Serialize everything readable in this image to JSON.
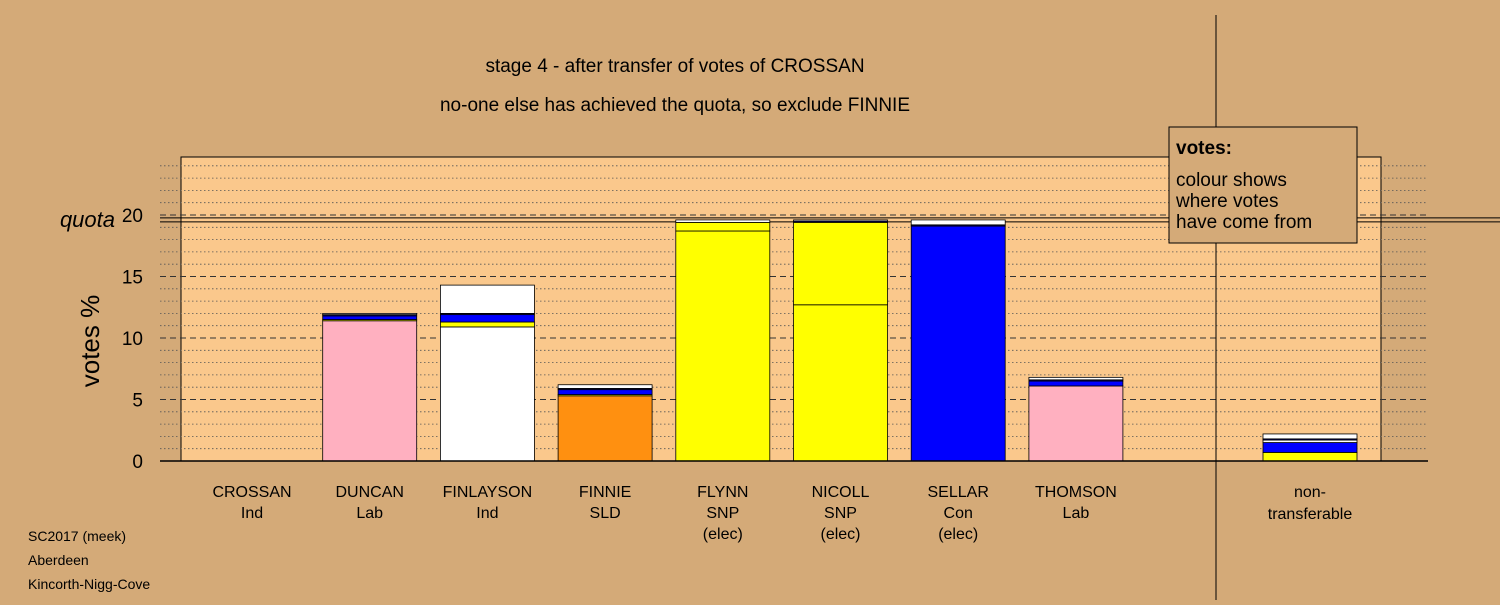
{
  "chart_data": {
    "type": "bar",
    "stacked": true,
    "title": "stage 4 - after transfer of votes of CROSSAN",
    "subtitle": "no-one else has achieved the quota, so exclude FINNIE",
    "ylabel": "votes %",
    "ylim": [
      0,
      25
    ],
    "yticks": [
      0,
      5,
      10,
      15,
      20
    ],
    "quota": 19.6,
    "quota_label": "quota",
    "grid": true,
    "colors": {
      "background": "#d4aa78",
      "plot_bg": "#fac88c",
      "white": "#ffffff",
      "yellow": "#ffff00",
      "blue": "#0000ff",
      "navy": "#000080",
      "pink": "#ffb0c0",
      "orange": "#ff9010"
    },
    "legend": {
      "position": "top-right",
      "title": "votes:",
      "lines": [
        "colour shows",
        "where votes",
        "have come from"
      ]
    },
    "candidates": [
      {
        "name": "CROSSAN",
        "party": "Ind",
        "status": "",
        "segments": []
      },
      {
        "name": "DUNCAN",
        "party": "Lab",
        "status": "",
        "segments": [
          {
            "color": "pink",
            "value": 11.4
          },
          {
            "color": "yellow",
            "value": 0.1
          },
          {
            "color": "blue",
            "value": 0.3
          },
          {
            "color": "navy",
            "value": 0.1
          },
          {
            "color": "white",
            "value": 0.1
          }
        ]
      },
      {
        "name": "FINLAYSON",
        "party": "Ind",
        "status": "",
        "segments": [
          {
            "color": "white",
            "value": 10.9
          },
          {
            "color": "yellow",
            "value": 0.4
          },
          {
            "color": "blue",
            "value": 0.6
          },
          {
            "color": "navy",
            "value": 0.1
          },
          {
            "color": "white",
            "value": 2.3
          }
        ]
      },
      {
        "name": "FINNIE",
        "party": "SLD",
        "status": "",
        "segments": [
          {
            "color": "orange",
            "value": 5.3
          },
          {
            "color": "yellow",
            "value": 0.1
          },
          {
            "color": "blue",
            "value": 0.4
          },
          {
            "color": "navy",
            "value": 0.1
          },
          {
            "color": "white",
            "value": 0.3
          }
        ]
      },
      {
        "name": "FLYNN",
        "party": "SNP",
        "status": "(elec)",
        "segments": [
          {
            "color": "yellow",
            "value": 18.7
          },
          {
            "color": "yellow",
            "value": 0.7
          },
          {
            "color": "white",
            "value": 0.2
          }
        ]
      },
      {
        "name": "NICOLL",
        "party": "SNP",
        "status": "(elec)",
        "segments": [
          {
            "color": "yellow",
            "value": 12.7
          },
          {
            "color": "yellow",
            "value": 6.7
          },
          {
            "color": "navy",
            "value": 0.1
          },
          {
            "color": "white",
            "value": 0.1
          }
        ]
      },
      {
        "name": "SELLAR",
        "party": "Con",
        "status": "(elec)",
        "segments": [
          {
            "color": "blue",
            "value": 19.1
          },
          {
            "color": "navy",
            "value": 0.1
          },
          {
            "color": "white",
            "value": 0.4
          }
        ]
      },
      {
        "name": "THOMSON",
        "party": "Lab",
        "status": "",
        "segments": [
          {
            "color": "pink",
            "value": 6.1
          },
          {
            "color": "blue",
            "value": 0.4
          },
          {
            "color": "navy",
            "value": 0.1
          },
          {
            "color": "white",
            "value": 0.2
          }
        ]
      }
    ],
    "nontransferable": {
      "label_line1": "non-",
      "label_line2": "transferable",
      "segments": [
        {
          "color": "yellow",
          "value": 0.7
        },
        {
          "color": "blue",
          "value": 0.8
        },
        {
          "color": "white",
          "value": 0.2
        },
        {
          "color": "navy",
          "value": 0.1
        },
        {
          "color": "white",
          "value": 0.4
        }
      ]
    }
  },
  "footer": {
    "line1": "SC2017 (meek)",
    "line2": "Aberdeen",
    "line3": "Kincorth-Nigg-Cove"
  }
}
